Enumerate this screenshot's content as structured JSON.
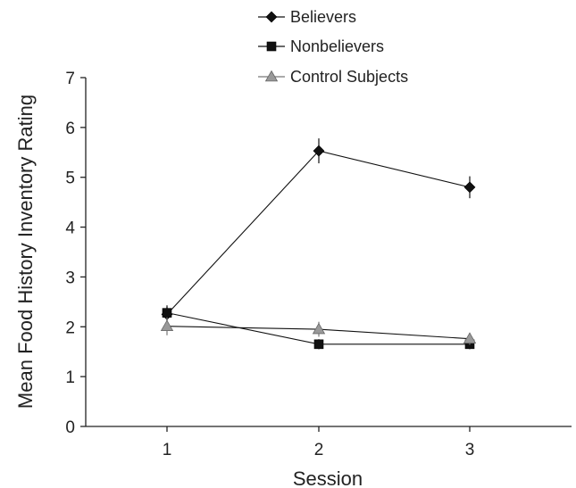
{
  "chart_data": {
    "type": "line",
    "title": "",
    "xlabel": "Session",
    "ylabel": "Mean Food History Inventory Rating",
    "categories": [
      "1",
      "2",
      "3"
    ],
    "ylim": [
      0,
      7
    ],
    "yticks": [
      0,
      1,
      2,
      3,
      4,
      5,
      6,
      7
    ],
    "grid": false,
    "legend_position": "top",
    "series": [
      {
        "name": "Believers",
        "marker": "diamond",
        "color": "#111111",
        "values": [
          2.25,
          5.53,
          4.8
        ],
        "errors": [
          0.15,
          0.25,
          0.22
        ]
      },
      {
        "name": "Nonbelievers",
        "marker": "square",
        "color": "#111111",
        "values": [
          2.28,
          1.65,
          1.65
        ],
        "errors": [
          0.15,
          0.1,
          0.1
        ]
      },
      {
        "name": "Control Subjects",
        "marker": "triangle",
        "color": "#999999",
        "values": [
          2.01,
          1.95,
          1.76
        ],
        "errors": [
          0.18,
          0.15,
          0.12
        ]
      }
    ]
  }
}
